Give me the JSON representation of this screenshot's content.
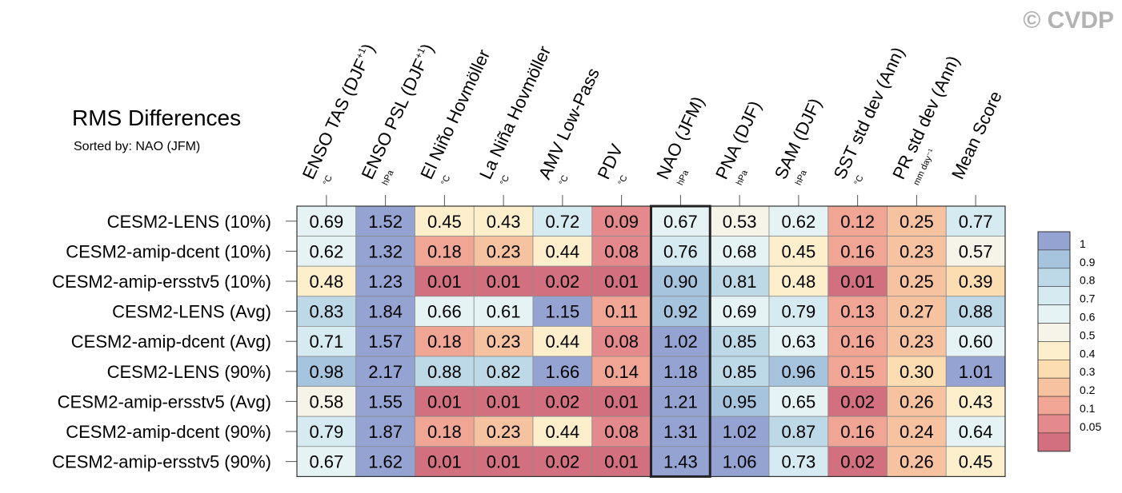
{
  "credit": "© CVDP",
  "chart_data": {
    "type": "heatmap",
    "title": "RMS Differences",
    "subtitle": "Sorted by: NAO (JFM)",
    "highlight_column": 6,
    "columns": [
      {
        "label": "ENSO TAS (DJF",
        "sup": "+1",
        "close": ")",
        "unit": "°C"
      },
      {
        "label": "ENSO PSL (DJF",
        "sup": "+1",
        "close": ")",
        "unit": "hPa"
      },
      {
        "label": "El Niño Hovmöller",
        "sup": "",
        "close": "",
        "unit": "°C"
      },
      {
        "label": "La Niña Hovmöller",
        "sup": "",
        "close": "",
        "unit": "°C"
      },
      {
        "label": "AMV Low-Pass",
        "sup": "",
        "close": "",
        "unit": "°C"
      },
      {
        "label": "PDV",
        "sup": "",
        "close": "",
        "unit": "°C"
      },
      {
        "label": "NAO (JFM)",
        "sup": "",
        "close": "",
        "unit": "hPa"
      },
      {
        "label": "PNA (DJF)",
        "sup": "",
        "close": "",
        "unit": "hPa"
      },
      {
        "label": "SAM (DJF)",
        "sup": "",
        "close": "",
        "unit": "hPa"
      },
      {
        "label": "SST std dev (Ann)",
        "sup": "",
        "close": "",
        "unit": "°C"
      },
      {
        "label": "PR std dev (Ann)",
        "sup": "",
        "close": "",
        "unit": "mm day⁻¹"
      },
      {
        "label": "Mean Score",
        "sup": "",
        "close": "",
        "unit": ""
      }
    ],
    "rows": [
      "CESM2-LENS (10%)",
      "CESM2-amip-dcent (10%)",
      "CESM2-amip-ersstv5 (10%)",
      "CESM2-LENS (Avg)",
      "CESM2-amip-dcent (Avg)",
      "CESM2-LENS (90%)",
      "CESM2-amip-ersstv5 (Avg)",
      "CESM2-amip-dcent (90%)",
      "CESM2-amip-ersstv5 (90%)"
    ],
    "values": [
      [
        0.69,
        1.52,
        0.45,
        0.43,
        0.72,
        0.09,
        0.67,
        0.53,
        0.62,
        0.12,
        0.25,
        0.77
      ],
      [
        0.62,
        1.32,
        0.18,
        0.23,
        0.44,
        0.08,
        0.76,
        0.68,
        0.45,
        0.16,
        0.23,
        0.57
      ],
      [
        0.48,
        1.23,
        0.01,
        0.01,
        0.02,
        0.01,
        0.9,
        0.81,
        0.48,
        0.01,
        0.25,
        0.39
      ],
      [
        0.83,
        1.84,
        0.66,
        0.61,
        1.15,
        0.11,
        0.92,
        0.69,
        0.79,
        0.13,
        0.27,
        0.88
      ],
      [
        0.71,
        1.57,
        0.18,
        0.23,
        0.44,
        0.08,
        1.02,
        0.85,
        0.63,
        0.16,
        0.23,
        0.6
      ],
      [
        0.98,
        2.17,
        0.88,
        0.82,
        1.66,
        0.14,
        1.18,
        0.85,
        0.96,
        0.15,
        0.3,
        1.01
      ],
      [
        0.58,
        1.55,
        0.01,
        0.01,
        0.02,
        0.01,
        1.21,
        0.95,
        0.65,
        0.02,
        0.26,
        0.43
      ],
      [
        0.79,
        1.87,
        0.18,
        0.23,
        0.44,
        0.08,
        1.31,
        1.02,
        0.87,
        0.16,
        0.24,
        0.64
      ],
      [
        0.67,
        1.62,
        0.01,
        0.01,
        0.02,
        0.01,
        1.43,
        1.06,
        0.73,
        0.02,
        0.26,
        0.45
      ]
    ],
    "colorbar": {
      "ticks": [
        "1",
        "0.9",
        "0.8",
        "0.7",
        "0.6",
        "0.5",
        "0.4",
        "0.3",
        "0.2",
        "0.1",
        "0.05"
      ],
      "thresholds": [
        1,
        0.9,
        0.8,
        0.7,
        0.6,
        0.5,
        0.4,
        0.3,
        0.2,
        0.1,
        0.05
      ],
      "colors": [
        "#95a3d2",
        "#a7c4de",
        "#bdd9e8",
        "#d6eaf2",
        "#e6f3f5",
        "#f6f3e8",
        "#fdefcb",
        "#fcdcb1",
        "#f7c29f",
        "#f1a594",
        "#e58a8c",
        "#d2707f"
      ]
    }
  }
}
